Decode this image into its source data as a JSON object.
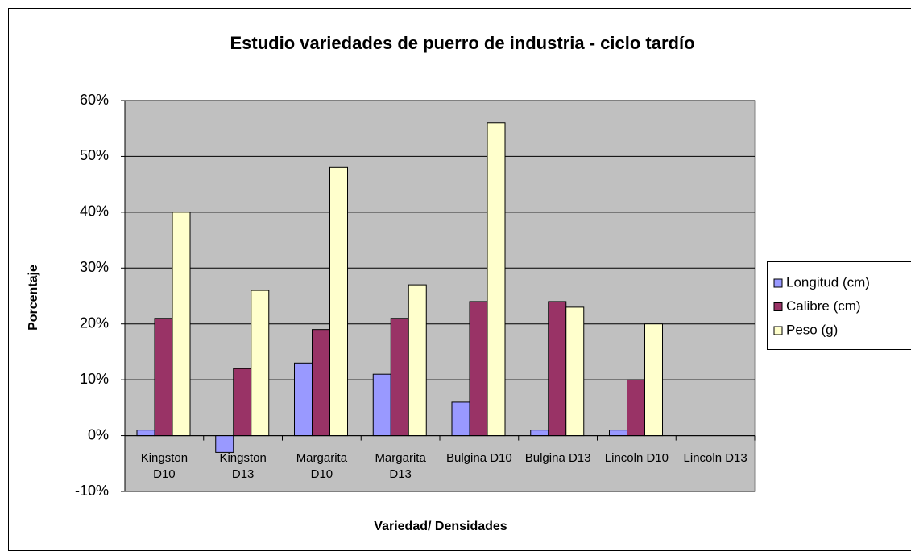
{
  "chart_data": {
    "type": "bar",
    "title": "Estudio variedades de puerro de industria - ciclo tardío",
    "xlabel": "Variedad/ Densidades",
    "ylabel": "Porcentaje",
    "categories": [
      "Kingston D10",
      "Kingston D13",
      "Margarita D10",
      "Margarita D13",
      "Bulgina D10",
      "Bulgina D13",
      "Lincoln D10",
      "Lincoln D13"
    ],
    "series": [
      {
        "name": "Longitud (cm)",
        "color": "#9999ff",
        "values": [
          1,
          -3,
          13,
          11,
          6,
          1,
          1,
          null
        ]
      },
      {
        "name": "Calibre (cm)",
        "color": "#993366",
        "values": [
          21,
          12,
          19,
          21,
          24,
          24,
          10,
          null
        ]
      },
      {
        "name": "Peso (g)",
        "color": "#ffffcc",
        "values": [
          40,
          26,
          48,
          27,
          56,
          23,
          20,
          null
        ]
      }
    ],
    "ylim": [
      -10,
      60
    ],
    "yticks": [
      {
        "value": -10,
        "label": "-10%"
      },
      {
        "value": 0,
        "label": "0%"
      },
      {
        "value": 10,
        "label": "10%"
      },
      {
        "value": 20,
        "label": "20%"
      },
      {
        "value": 30,
        "label": "30%"
      },
      {
        "value": 40,
        "label": "40%"
      },
      {
        "value": 50,
        "label": "50%"
      },
      {
        "value": 60,
        "label": "60%"
      }
    ],
    "grid": true,
    "legend": "right"
  }
}
